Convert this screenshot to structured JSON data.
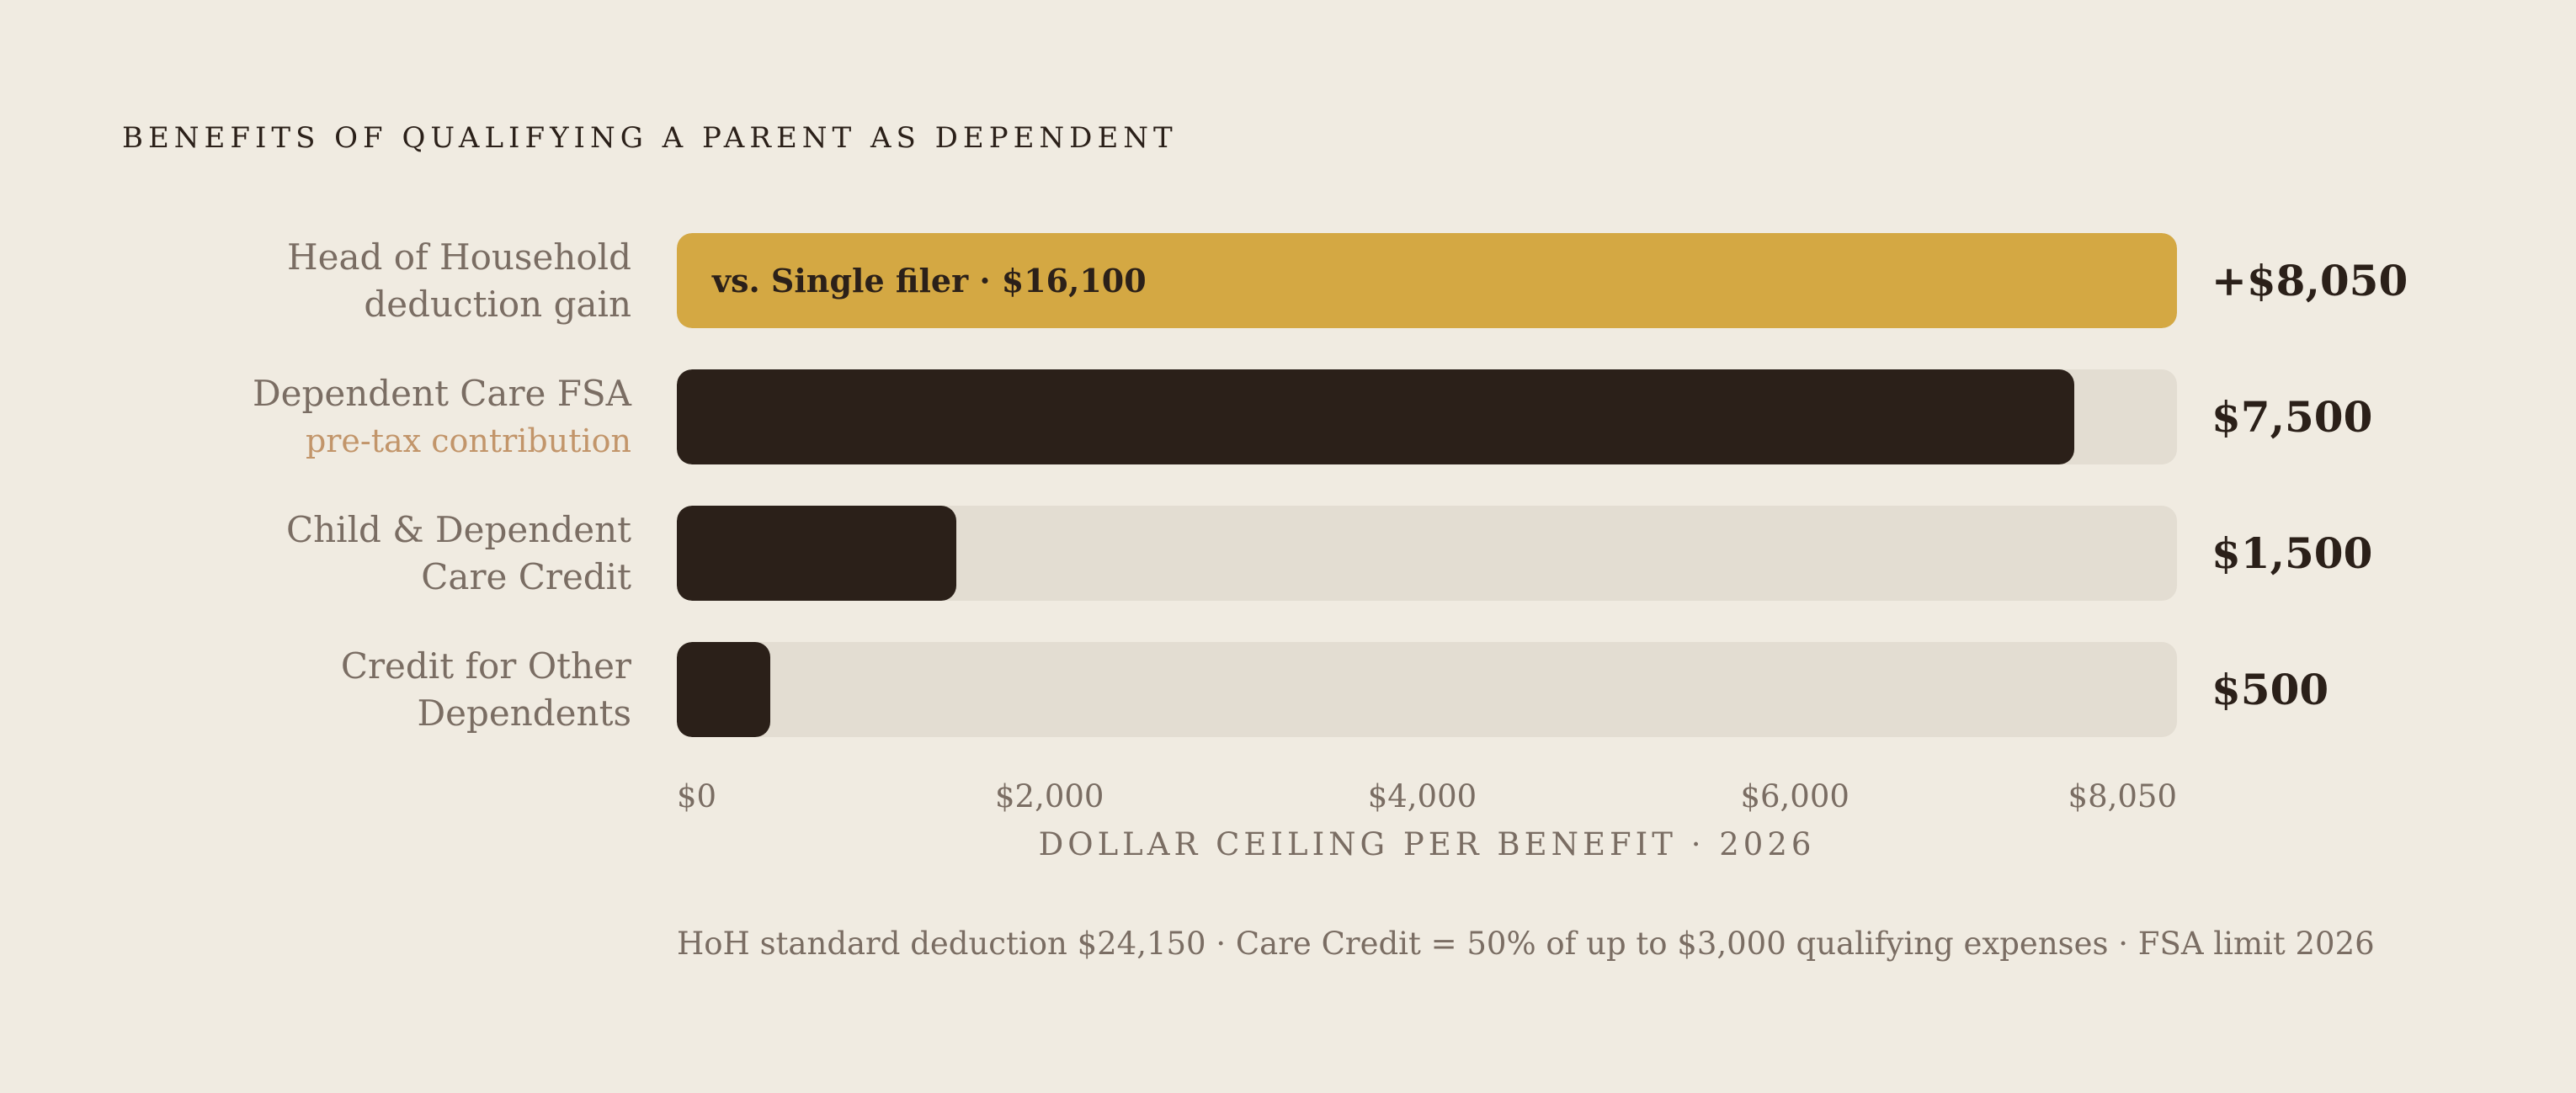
{
  "title": "BENEFITS OF QUALIFYING A PARENT AS DEPENDENT",
  "chart_data": {
    "type": "bar",
    "orientation": "horizontal",
    "xlim": [
      0,
      8050
    ],
    "xlabel": "DOLLAR CEILING PER BENEFIT · 2026",
    "ticks": [
      "$0",
      "$2,000",
      "$4,000",
      "$6,000",
      "$8,050"
    ],
    "tick_values": [
      0,
      2000,
      4000,
      6000,
      8050
    ],
    "categories": [
      {
        "line1": "Head of Household",
        "line2": "deduction gain",
        "sublabel": false
      },
      {
        "line1": "Dependent Care FSA",
        "line2": "pre-tax contribution",
        "sublabel": true
      },
      {
        "line1": "Child & Dependent",
        "line2": "Care Credit",
        "sublabel": false
      },
      {
        "line1": "Credit for Other",
        "line2": "Dependents",
        "sublabel": false
      }
    ],
    "values": [
      8050,
      7500,
      1500,
      500
    ],
    "value_labels": [
      "+$8,050",
      "$7,500",
      "$1,500",
      "$500"
    ],
    "highlight_index": 0,
    "highlight_annotation": "vs. Single filer  ·  $16,100",
    "colors": {
      "highlight": "#d4a843",
      "bar": "#2b2019",
      "track": "#e3ddd2",
      "sublabel": "#c2956a"
    }
  },
  "footnote": "HoH standard deduction $24,150  ·  Care Credit = 50% of up to $3,000 qualifying expenses  ·  FSA limit 2026"
}
